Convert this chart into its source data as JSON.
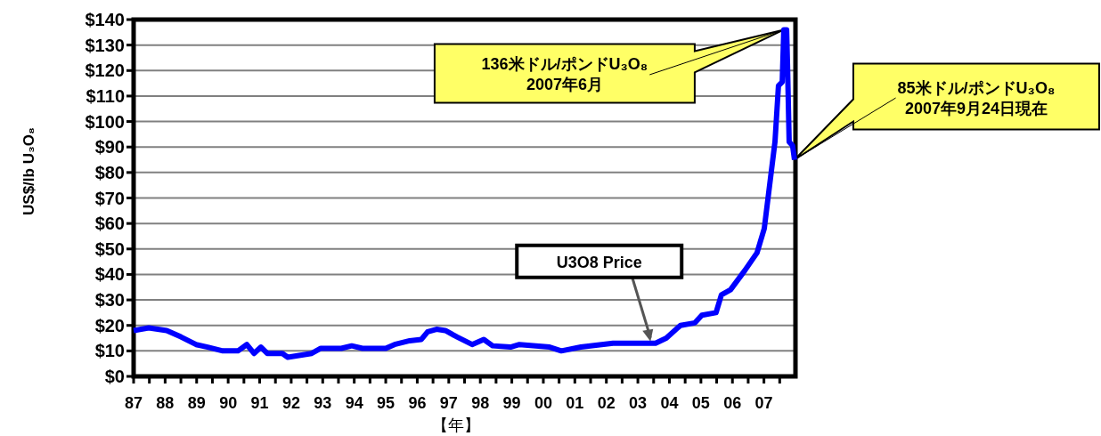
{
  "chart_data": {
    "type": "line",
    "xlabel": "【年】",
    "ylabel": "US$/lb U₃O₈",
    "x": [
      1987.0,
      1987.48,
      1988.05,
      1988.5,
      1988.98,
      1989.35,
      1989.83,
      1990.31,
      1990.59,
      1990.82,
      1991.04,
      1991.24,
      1991.72,
      1991.89,
      1992.65,
      1992.94,
      1993.59,
      1993.92,
      1994.26,
      1995.0,
      1995.28,
      1995.76,
      1996.13,
      1996.33,
      1996.61,
      1996.89,
      1997.26,
      1997.74,
      1998.11,
      1998.39,
      1998.96,
      1999.24,
      2000.2,
      2000.57,
      2001.19,
      2002.21,
      2003.56,
      2003.9,
      2004.35,
      2004.81,
      2005.03,
      2005.48,
      2005.65,
      2005.94,
      2006.39,
      2006.78,
      2007.01,
      2007.18,
      2007.35,
      2007.46,
      2007.58,
      2007.63,
      2007.72,
      2007.75,
      2007.8,
      2007.91,
      2007.97
    ],
    "series": [
      {
        "color": "#0000ff",
        "values": [
          18,
          19,
          18,
          15.5,
          12.5,
          11.5,
          10,
          10,
          12.5,
          9,
          11.5,
          9,
          9,
          7.5,
          9,
          11,
          11,
          12,
          11,
          11,
          12.5,
          14,
          14.5,
          17.5,
          18.5,
          18,
          15.5,
          12.5,
          14.5,
          12,
          11.5,
          12.5,
          11.5,
          10,
          11.5,
          13,
          13,
          15,
          20,
          21,
          24,
          25,
          32,
          34,
          41.5,
          48.5,
          58,
          75,
          92,
          114,
          115.5,
          136,
          136,
          121,
          92,
          90.5,
          85
        ]
      }
    ],
    "xlim": [
      1987,
      2008
    ],
    "xticks": [
      {
        "value": 1987,
        "label": "87"
      },
      {
        "value": 1987.5,
        "label": null
      },
      {
        "value": 1988,
        "label": "88"
      },
      {
        "value": 1988.5,
        "label": null
      },
      {
        "value": 1989,
        "label": "89"
      },
      {
        "value": 1989.5,
        "label": null
      },
      {
        "value": 1990,
        "label": "90"
      },
      {
        "value": 1990.5,
        "label": null
      },
      {
        "value": 1991,
        "label": "91"
      },
      {
        "value": 1991.5,
        "label": null
      },
      {
        "value": 1992,
        "label": "92"
      },
      {
        "value": 1992.5,
        "label": null
      },
      {
        "value": 1993,
        "label": "93"
      },
      {
        "value": 1993.5,
        "label": null
      },
      {
        "value": 1994,
        "label": "94"
      },
      {
        "value": 1994.5,
        "label": null
      },
      {
        "value": 1995,
        "label": "95"
      },
      {
        "value": 1995.5,
        "label": null
      },
      {
        "value": 1996,
        "label": "96"
      },
      {
        "value": 1996.5,
        "label": null
      },
      {
        "value": 1997,
        "label": "97"
      },
      {
        "value": 1997.5,
        "label": null
      },
      {
        "value": 1998,
        "label": "98"
      },
      {
        "value": 1998.5,
        "label": null
      },
      {
        "value": 1999,
        "label": "99"
      },
      {
        "value": 1999.5,
        "label": null
      },
      {
        "value": 2000,
        "label": "00"
      },
      {
        "value": 2000.5,
        "label": null
      },
      {
        "value": 2001,
        "label": "01"
      },
      {
        "value": 2001.5,
        "label": null
      },
      {
        "value": 2002,
        "label": "02"
      },
      {
        "value": 2002.5,
        "label": null
      },
      {
        "value": 2003,
        "label": "03"
      },
      {
        "value": 2003.5,
        "label": null
      },
      {
        "value": 2004,
        "label": "04"
      },
      {
        "value": 2004.5,
        "label": null
      },
      {
        "value": 2005,
        "label": "05"
      },
      {
        "value": 2005.5,
        "label": null
      },
      {
        "value": 2006,
        "label": "06"
      },
      {
        "value": 2006.5,
        "label": null
      },
      {
        "value": 2007,
        "label": "07"
      },
      {
        "value": 2007.5,
        "label": null
      }
    ],
    "ylim": [
      0,
      140
    ],
    "yticks": [
      {
        "value": 0,
        "label": "$0"
      },
      {
        "value": 10,
        "label": "$10"
      },
      {
        "value": 20,
        "label": "$20"
      },
      {
        "value": 30,
        "label": "$30"
      },
      {
        "value": 40,
        "label": "$40"
      },
      {
        "value": 50,
        "label": "$50"
      },
      {
        "value": 60,
        "label": "$60"
      },
      {
        "value": 70,
        "label": "$70"
      },
      {
        "value": 80,
        "label": "$80"
      },
      {
        "value": 90,
        "label": "$90"
      },
      {
        "value": 100,
        "label": "$100"
      },
      {
        "value": 110,
        "label": "$110"
      },
      {
        "value": 120,
        "label": "$120"
      },
      {
        "value": 130,
        "label": "$130"
      },
      {
        "value": 140,
        "label": "$140"
      }
    ],
    "grid": "y",
    "marker": "none",
    "line_style": "solid",
    "annotations": [
      {
        "text": "136米ドル/ポンドU₃O₈\n2007年6月",
        "x": 2007.63,
        "y": 136
      },
      {
        "text": "85米ドル/ポンドU₃O₈\n2007年9月24日現在",
        "x": 2007.97,
        "y": 85
      },
      {
        "text": "U3O8 Price",
        "x": 2003.4,
        "y": 13
      }
    ]
  }
}
